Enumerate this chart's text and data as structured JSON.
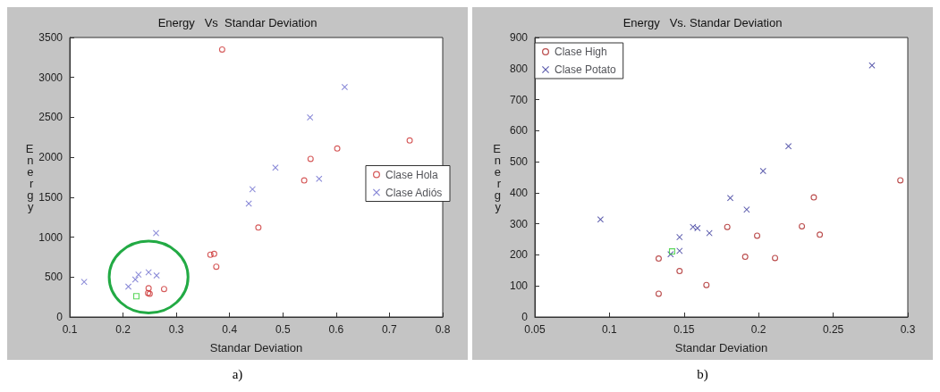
{
  "chart_data": [
    {
      "type": "scatter",
      "title": "Energy   Vs  Standar Deviation",
      "xlabel": "Standar Deviation",
      "ylabel": "Energy",
      "xlim": [
        0.1,
        0.8
      ],
      "xticks": [
        0.1,
        0.2,
        0.3,
        0.4,
        0.5,
        0.6,
        0.7,
        0.8
      ],
      "ylim": [
        0,
        3500
      ],
      "yticks": [
        0,
        500,
        1000,
        1500,
        2000,
        2500,
        3000,
        3500
      ],
      "grid": false,
      "legend": "right",
      "annotations": [
        "a)"
      ],
      "series": [
        {
          "name": "Clase Hola",
          "color": "#cc3333",
          "marker": "circle",
          "x": [
            0.386,
            0.738,
            0.602,
            0.552,
            0.54,
            0.454,
            0.364,
            0.371,
            0.375,
            0.248,
            0.247,
            0.25,
            0.277
          ],
          "values": [
            3350,
            2210,
            2110,
            1980,
            1710,
            1120,
            780,
            790,
            630,
            360,
            300,
            290,
            350
          ]
        },
        {
          "name": "Clase Adiós",
          "color": "#6666cc",
          "marker": "cross",
          "x": [
            0.616,
            0.551,
            0.486,
            0.568,
            0.443,
            0.436,
            0.262,
            0.127,
            0.21,
            0.223,
            0.229,
            0.248,
            0.263
          ],
          "values": [
            2880,
            2500,
            1870,
            1730,
            1600,
            1420,
            1050,
            440,
            380,
            470,
            530,
            560,
            520
          ]
        },
        {
          "color": "#33cc33",
          "marker": "square",
          "x": [
            0.225
          ],
          "values": [
            260
          ]
        }
      ]
    },
    {
      "type": "scatter",
      "title": "Energy   Vs. Standar Deviation",
      "xlabel": "Standar Deviation",
      "ylabel": "Energy",
      "xlim": [
        0.05,
        0.3
      ],
      "xticks": [
        0.05,
        0.1,
        0.15,
        0.2,
        0.25,
        0.3
      ],
      "ylim": [
        0,
        900
      ],
      "yticks": [
        0,
        100,
        200,
        300,
        400,
        500,
        600,
        700,
        800,
        900
      ],
      "grid": false,
      "legend": "top left",
      "annotations": [
        "b)"
      ],
      "series": [
        {
          "name": "Clase High",
          "color": "#aa2222",
          "marker": "circle",
          "x": [
            0.295,
            0.237,
            0.229,
            0.241,
            0.199,
            0.179,
            0.191,
            0.211,
            0.133,
            0.147,
            0.165,
            0.133
          ],
          "values": [
            440,
            385,
            292,
            265,
            262,
            290,
            194,
            190,
            188,
            148,
            103,
            75
          ]
        },
        {
          "name": "Clase Potato",
          "color": "#333399",
          "marker": "cross",
          "x": [
            0.276,
            0.22,
            0.203,
            0.181,
            0.192,
            0.094,
            0.156,
            0.159,
            0.167,
            0.147,
            0.147,
            0.141
          ],
          "values": [
            810,
            550,
            470,
            383,
            346,
            314,
            290,
            286,
            270,
            257,
            213,
            202
          ]
        },
        {
          "color": "#33cc33",
          "marker": "square",
          "x": [
            0.142
          ],
          "values": [
            211
          ]
        }
      ]
    }
  ]
}
